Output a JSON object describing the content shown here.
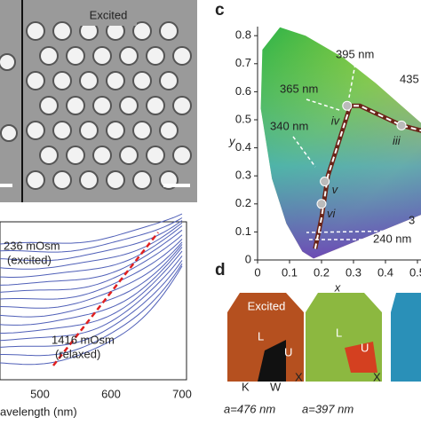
{
  "panel_a": {
    "title": "Excited"
  },
  "panel_b": {
    "annotations": [
      "236 mOsm",
      "(excited)",
      "1416 mOsm",
      "(relaxed)"
    ],
    "xticks": [
      "500",
      "600",
      "700"
    ],
    "xlabel": "avelength (nm)"
  },
  "panel_c": {
    "label": "c",
    "xlabel": "x",
    "ylabel": "y",
    "xticks": [
      "0",
      "0.1",
      "0.2",
      "0.3",
      "0.4",
      "0.5"
    ],
    "yticks": [
      "0",
      "0.1",
      "0.2",
      "0.3",
      "0.4",
      "0.5",
      "0.6",
      "0.7",
      "0.8"
    ],
    "annotations": [
      "395 nm",
      "365 nm",
      "435",
      "340 nm",
      "3",
      "240 nm"
    ],
    "points": [
      "iv",
      "iii",
      "v",
      "vi"
    ]
  },
  "panel_d": {
    "label": "d",
    "tiles": [
      {
        "title": "Excited",
        "labels": [
          "L",
          "U",
          "K",
          "W",
          "X"
        ],
        "caption": "a=476 nm"
      },
      {
        "labels": [
          "L",
          "U",
          "X"
        ],
        "caption": "a=397 nm"
      }
    ]
  }
}
